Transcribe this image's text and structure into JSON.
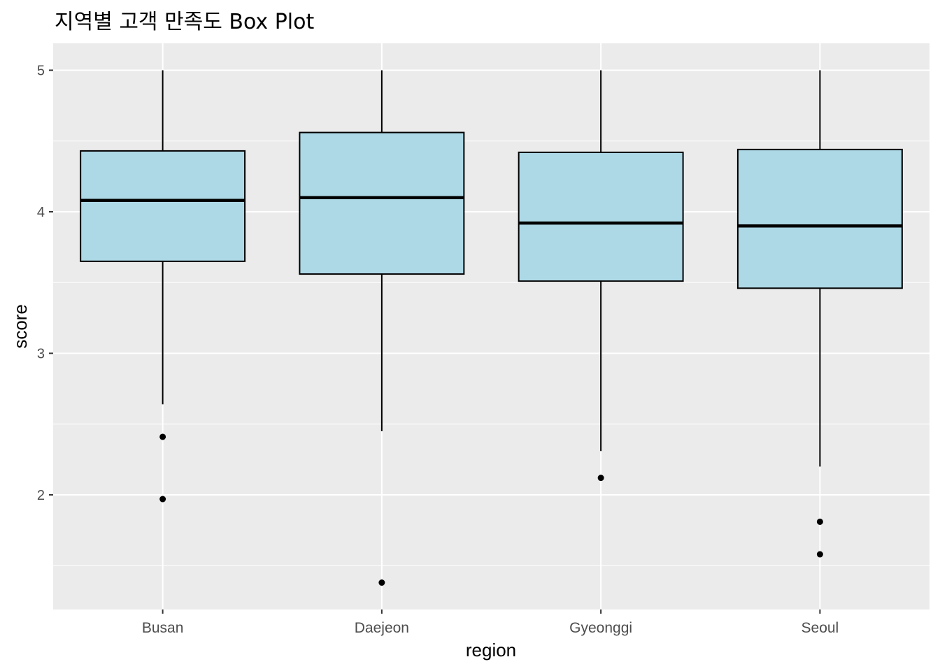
{
  "chart_data": {
    "type": "boxplot",
    "title": "지역별 고객 만족도 Box Plot",
    "xlabel": "region",
    "ylabel": "score",
    "ylim": [
      1.19,
      5.19
    ],
    "y_ticks": [
      2,
      3,
      4,
      5
    ],
    "y_minor_ticks": [
      1.5,
      2.5,
      3.5,
      4.5
    ],
    "grid": true,
    "box_fill": "#add8e6",
    "panel_background": "#ebebeb",
    "categories": [
      "Busan",
      "Daejeon",
      "Gyeonggi",
      "Seoul"
    ],
    "boxes": [
      {
        "category": "Busan",
        "whisker_low": 2.64,
        "q1": 3.65,
        "median": 4.08,
        "q3": 4.43,
        "whisker_high": 5.0,
        "outliers": [
          2.41,
          1.97
        ]
      },
      {
        "category": "Daejeon",
        "whisker_low": 2.45,
        "q1": 3.56,
        "median": 4.1,
        "q3": 4.56,
        "whisker_high": 5.0,
        "outliers": [
          1.38
        ]
      },
      {
        "category": "Gyeonggi",
        "whisker_low": 2.31,
        "q1": 3.51,
        "median": 3.92,
        "q3": 4.42,
        "whisker_high": 5.0,
        "outliers": [
          2.12
        ]
      },
      {
        "category": "Seoul",
        "whisker_low": 2.2,
        "q1": 3.46,
        "median": 3.9,
        "q3": 4.44,
        "whisker_high": 5.0,
        "outliers": [
          1.81,
          1.58
        ]
      }
    ]
  }
}
